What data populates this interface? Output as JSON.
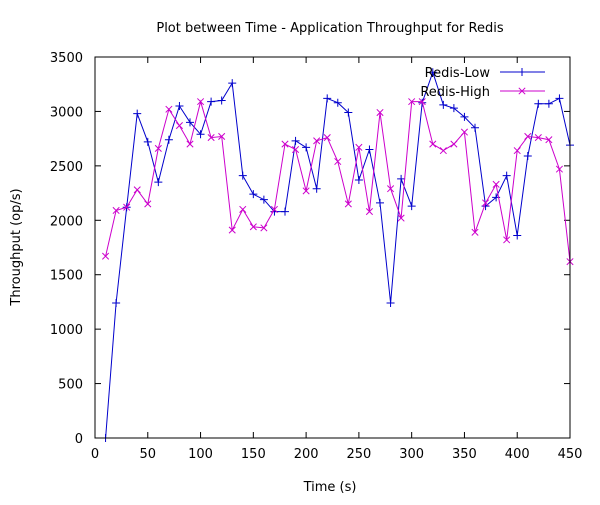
{
  "chart_data": {
    "type": "line",
    "title": "Plot between Time - Application Throughput for Redis",
    "xlabel": "Time (s)",
    "ylabel": "Throughput (op/s)",
    "xlim": [
      0,
      450
    ],
    "ylim": [
      0,
      3500
    ],
    "x_ticks": [
      0,
      50,
      100,
      150,
      200,
      250,
      300,
      350,
      400,
      450
    ],
    "y_ticks": [
      0,
      500,
      1000,
      1500,
      2000,
      2500,
      3000,
      3500
    ],
    "grid": false,
    "legend_position": "top-right",
    "x": [
      10,
      20,
      30,
      40,
      50,
      60,
      70,
      80,
      90,
      100,
      110,
      120,
      130,
      140,
      150,
      160,
      170,
      180,
      190,
      200,
      210,
      220,
      230,
      240,
      250,
      260,
      270,
      280,
      290,
      300,
      310,
      320,
      330,
      340,
      350,
      360,
      370,
      380,
      390,
      400,
      410,
      420,
      430,
      440,
      450
    ],
    "series": [
      {
        "name": "Redis-Low",
        "color": "#0000cc",
        "marker": "plus",
        "values": [
          0,
          1240,
          2120,
          2980,
          2720,
          2350,
          2740,
          3050,
          2900,
          2790,
          3090,
          3100,
          3260,
          2410,
          2240,
          2190,
          2080,
          2080,
          2730,
          2670,
          2290,
          3120,
          3080,
          2990,
          2370,
          2650,
          2160,
          1240,
          2380,
          2130,
          3080,
          3360,
          3060,
          3030,
          2950,
          2850,
          2130,
          2210,
          2410,
          1860,
          2590,
          3070,
          3070,
          3120,
          2690
        ]
      },
      {
        "name": "Redis-High",
        "color": "#cc00cc",
        "marker": "cross",
        "values": [
          1670,
          2090,
          2120,
          2280,
          2150,
          2660,
          3020,
          2870,
          2700,
          3090,
          2760,
          2770,
          1910,
          2100,
          1940,
          1930,
          2100,
          2700,
          2650,
          2270,
          2730,
          2760,
          2540,
          2150,
          2670,
          2080,
          2990,
          2290,
          2020,
          3090,
          3090,
          2700,
          2640,
          2700,
          2810,
          1890,
          2160,
          2330,
          1820,
          2640,
          2770,
          2760,
          2740,
          2470,
          1620
        ]
      }
    ]
  }
}
